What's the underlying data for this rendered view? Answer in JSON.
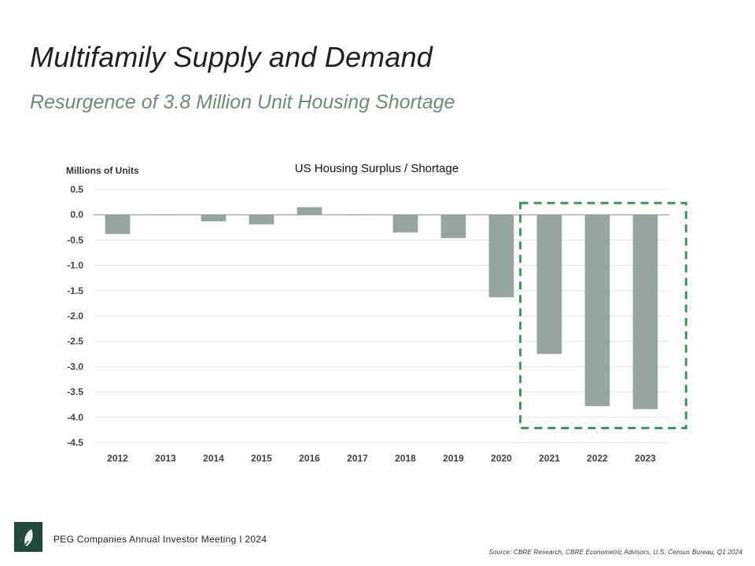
{
  "slide": {
    "title": "Multifamily Supply and Demand",
    "subtitle": "Resurgence of 3.8 Million Unit Housing Shortage"
  },
  "chart_data": {
    "type": "bar",
    "title": "US Housing Surplus / Shortage",
    "ylabel": "Millions of Units",
    "xlabel": "",
    "categories": [
      "2012",
      "2013",
      "2014",
      "2015",
      "2016",
      "2017",
      "2018",
      "2019",
      "2020",
      "2021",
      "2022",
      "2023"
    ],
    "values": [
      -0.38,
      0.01,
      -0.13,
      -0.19,
      0.15,
      0.01,
      -0.35,
      -0.46,
      -1.63,
      -2.75,
      -3.78,
      -3.84
    ],
    "ylim": [
      -4.5,
      0.5
    ],
    "yticks": [
      "0.5",
      "0.0",
      "-0.5",
      "-1.0",
      "-1.5",
      "-2.0",
      "-2.5",
      "-3.0",
      "-3.5",
      "-4.0",
      "-4.5"
    ],
    "grid": true,
    "highlight_categories": [
      "2021",
      "2022",
      "2023"
    ],
    "colors": {
      "bar": "#95a59f",
      "grid": "#e3e3e3",
      "zero_line": "#9a9a9a",
      "highlight_box": "#2e9e58"
    }
  },
  "footer": {
    "meeting": "PEG Companies Annual Investor Meeting I 2024",
    "source": "Source: CBRE Research, CBRE Econometric Advisors, U.S. Census Bureau, Q1 2024",
    "logo_color": "#1f4a3c",
    "logo_icon": "leaf-logo-icon"
  }
}
